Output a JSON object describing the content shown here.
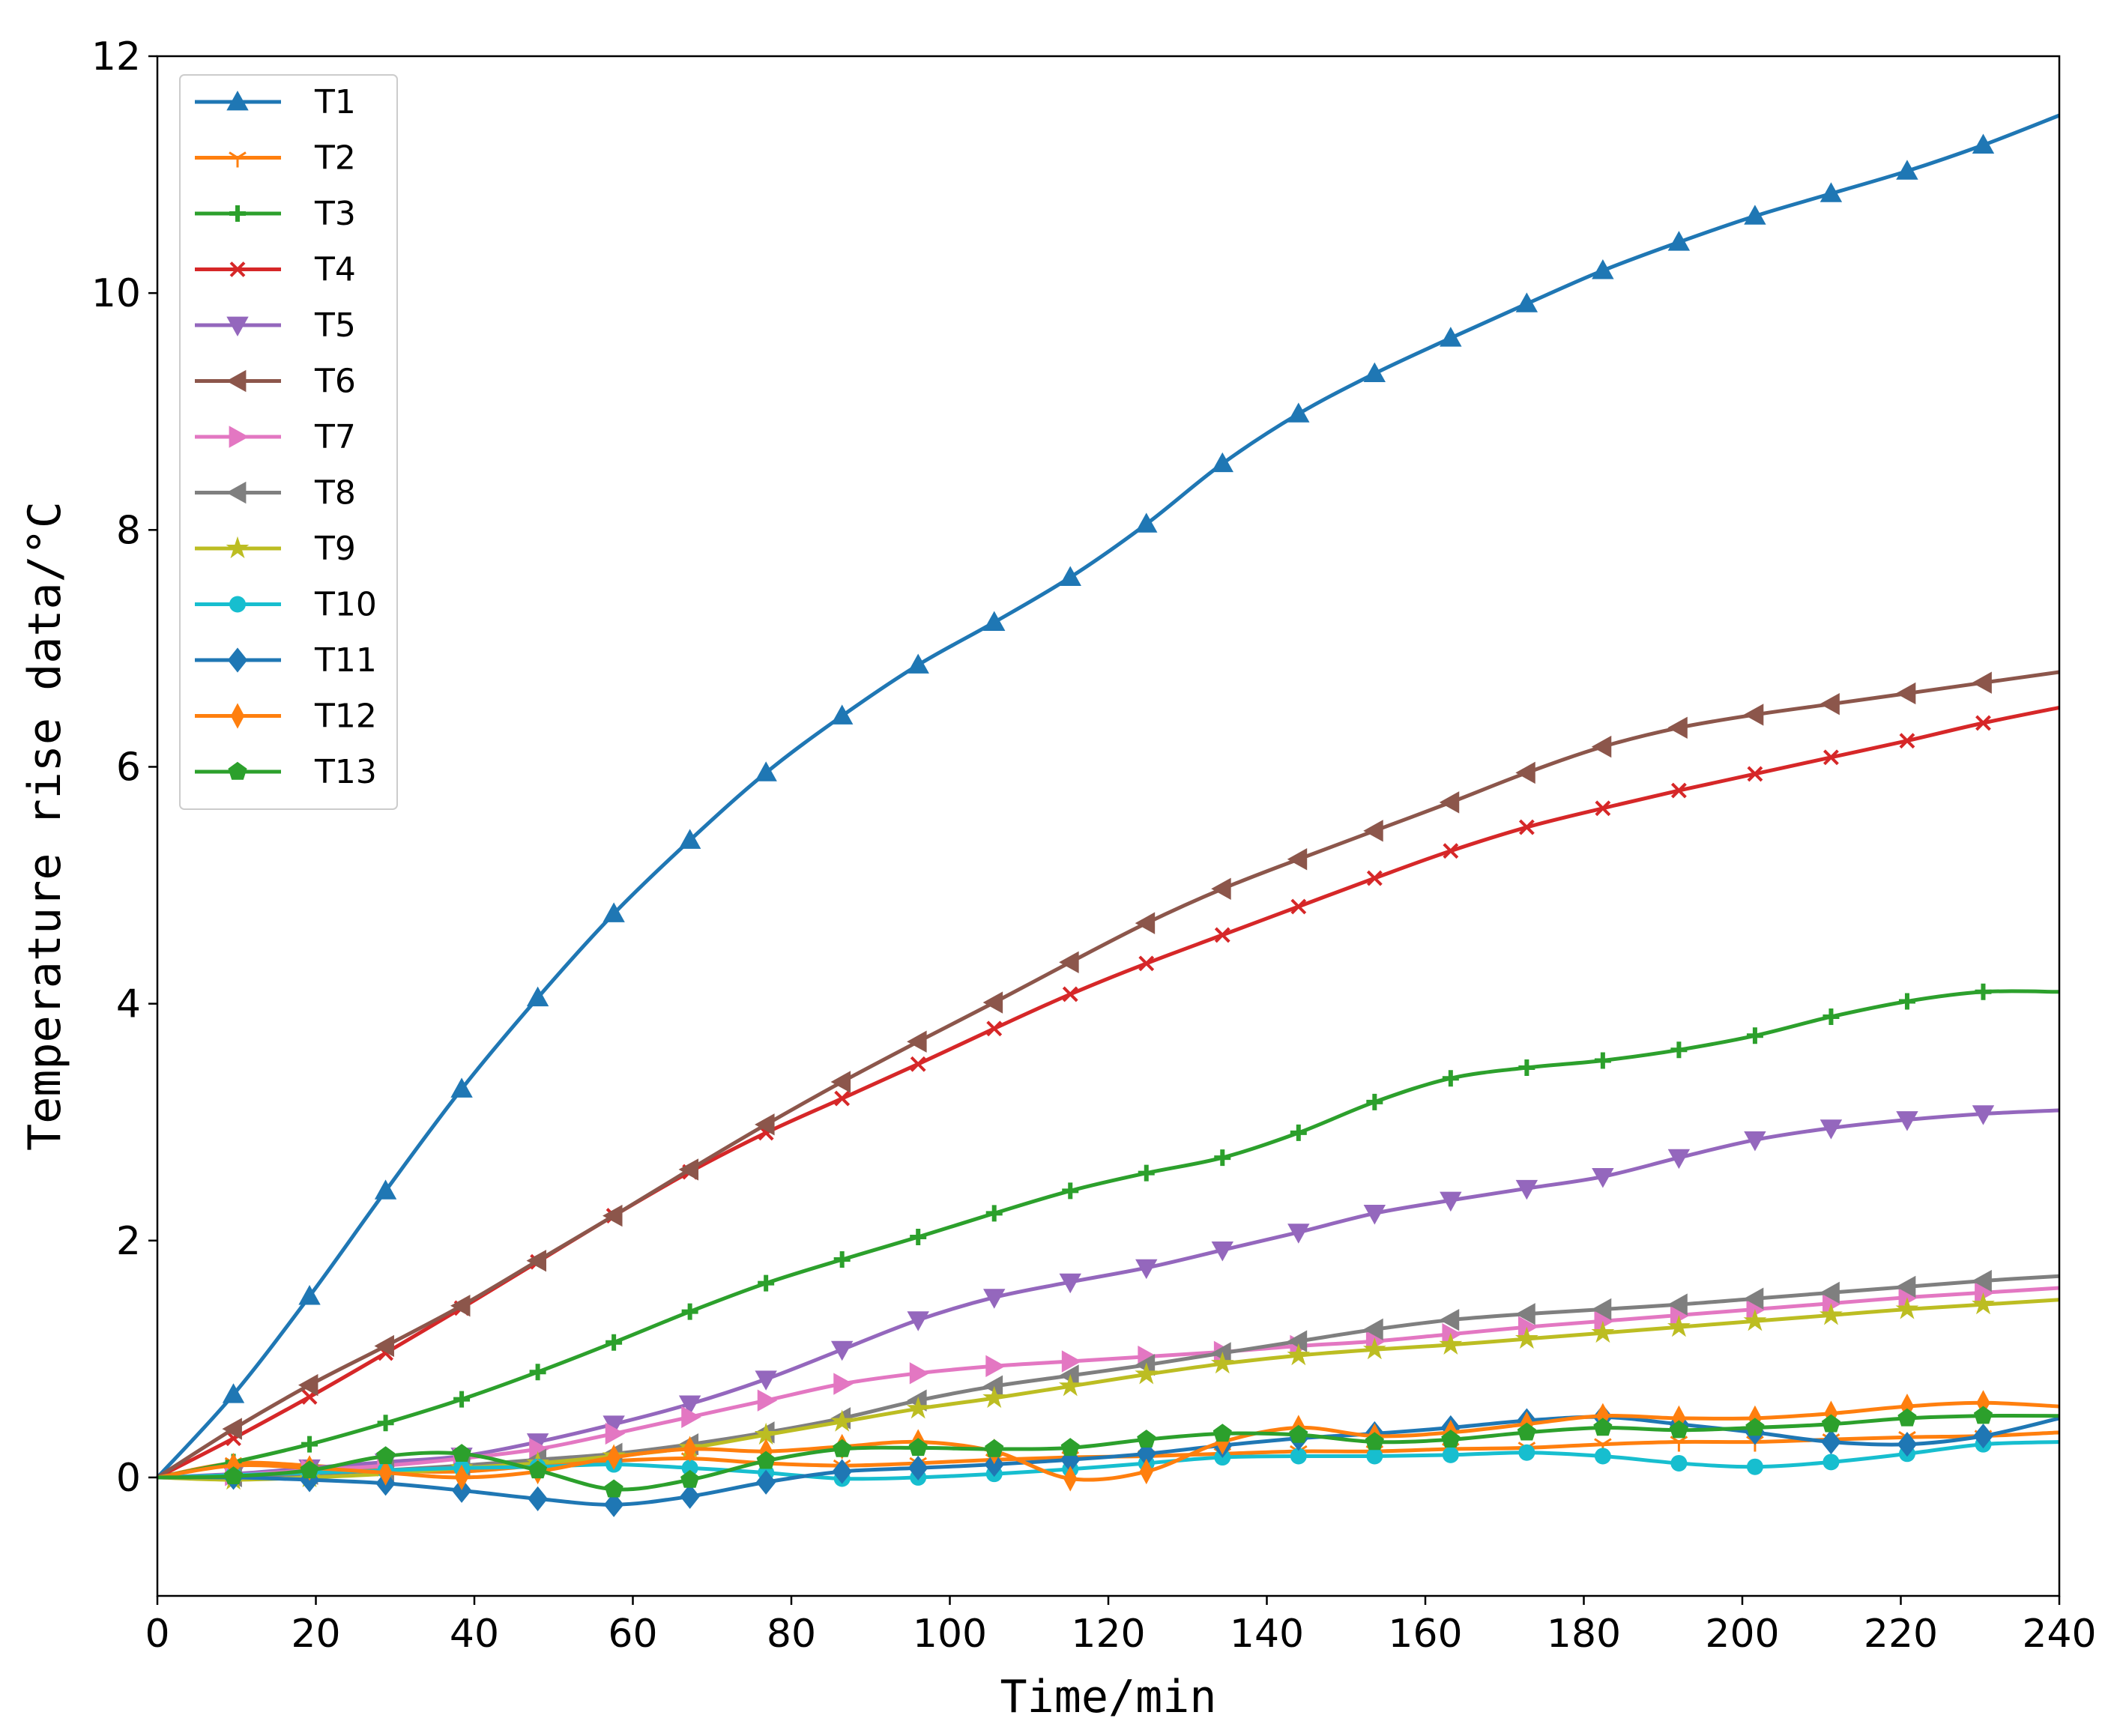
{
  "chart_data": {
    "type": "line",
    "title": "",
    "xlabel": "Time/min",
    "ylabel": "Temperature rise data/°C",
    "xlim": [
      0,
      240
    ],
    "ylim": [
      -1,
      12
    ],
    "xticks": [
      0,
      20,
      40,
      60,
      80,
      100,
      120,
      140,
      160,
      180,
      200,
      220,
      240
    ],
    "yticks": [
      0,
      2,
      4,
      6,
      8,
      10,
      12
    ],
    "grid": false,
    "legend_position": "top-left",
    "x": [
      0,
      9.6,
      19.2,
      28.8,
      38.4,
      48,
      57.6,
      67.2,
      76.8,
      86.4,
      96,
      105.6,
      115.2,
      124.8,
      134.4,
      144,
      153.6,
      163.2,
      172.8,
      182.4,
      192,
      201.6,
      211.2,
      220.8,
      230.4,
      240
    ],
    "series": [
      {
        "name": "T1",
        "color": "#1f77b4",
        "marker": "triangle-up",
        "values": [
          0,
          0.7,
          1.53,
          2.42,
          3.28,
          4.05,
          4.76,
          5.38,
          5.95,
          6.43,
          6.86,
          7.22,
          7.6,
          8.05,
          8.56,
          8.98,
          9.32,
          9.62,
          9.91,
          10.19,
          10.43,
          10.65,
          10.84,
          11.03,
          11.25,
          11.5
        ]
      },
      {
        "name": "T2",
        "color": "#ff7f0e",
        "marker": "tri-down",
        "values": [
          0,
          0.12,
          0.1,
          0.06,
          0.05,
          0.1,
          0.14,
          0.16,
          0.12,
          0.1,
          0.12,
          0.15,
          0.17,
          0.18,
          0.2,
          0.22,
          0.22,
          0.24,
          0.25,
          0.28,
          0.3,
          0.3,
          0.32,
          0.34,
          0.35,
          0.38
        ]
      },
      {
        "name": "T3",
        "color": "#2ca02c",
        "marker": "plus",
        "values": [
          0,
          0.13,
          0.28,
          0.46,
          0.66,
          0.89,
          1.14,
          1.4,
          1.64,
          1.84,
          2.03,
          2.23,
          2.42,
          2.57,
          2.7,
          2.91,
          3.17,
          3.37,
          3.46,
          3.52,
          3.61,
          3.73,
          3.89,
          4.02,
          4.1,
          4.1
        ]
      },
      {
        "name": "T4",
        "color": "#d62728",
        "marker": "x",
        "values": [
          0,
          0.33,
          0.68,
          1.05,
          1.43,
          1.82,
          2.21,
          2.58,
          2.91,
          3.2,
          3.49,
          3.79,
          4.08,
          4.34,
          4.58,
          4.82,
          5.06,
          5.29,
          5.49,
          5.65,
          5.8,
          5.94,
          6.08,
          6.22,
          6.37,
          6.5
        ]
      },
      {
        "name": "T5",
        "color": "#9467bd",
        "marker": "triangle-down",
        "values": [
          0,
          0.03,
          0.08,
          0.13,
          0.18,
          0.3,
          0.45,
          0.62,
          0.83,
          1.08,
          1.33,
          1.52,
          1.65,
          1.77,
          1.92,
          2.07,
          2.23,
          2.34,
          2.44,
          2.54,
          2.7,
          2.85,
          2.95,
          3.02,
          3.07,
          3.1
        ]
      },
      {
        "name": "T6",
        "color": "#8c564b",
        "marker": "triangle-left",
        "values": [
          0,
          0.41,
          0.78,
          1.11,
          1.45,
          1.83,
          2.21,
          2.6,
          2.98,
          3.34,
          3.68,
          4.01,
          4.35,
          4.68,
          4.97,
          5.22,
          5.46,
          5.7,
          5.95,
          6.17,
          6.33,
          6.44,
          6.53,
          6.62,
          6.71,
          6.8
        ]
      },
      {
        "name": "T7",
        "color": "#e377c2",
        "marker": "triangle-right",
        "values": [
          0,
          0.02,
          0.06,
          0.1,
          0.16,
          0.24,
          0.37,
          0.51,
          0.65,
          0.79,
          0.88,
          0.94,
          0.98,
          1.02,
          1.06,
          1.11,
          1.15,
          1.21,
          1.27,
          1.32,
          1.37,
          1.42,
          1.47,
          1.52,
          1.56,
          1.6
        ]
      },
      {
        "name": "T8",
        "color": "#7f7f7f",
        "marker": "triangle-left",
        "values": [
          0,
          0.01,
          0.03,
          0.06,
          0.1,
          0.15,
          0.2,
          0.28,
          0.38,
          0.5,
          0.65,
          0.77,
          0.86,
          0.95,
          1.05,
          1.15,
          1.25,
          1.33,
          1.38,
          1.42,
          1.46,
          1.51,
          1.56,
          1.61,
          1.66,
          1.7
        ]
      },
      {
        "name": "T9",
        "color": "#bcbd22",
        "marker": "star",
        "values": [
          0,
          -0.02,
          0,
          0.03,
          0.08,
          0.12,
          0.18,
          0.25,
          0.36,
          0.47,
          0.58,
          0.67,
          0.77,
          0.87,
          0.96,
          1.03,
          1.08,
          1.12,
          1.17,
          1.22,
          1.27,
          1.32,
          1.37,
          1.42,
          1.46,
          1.5
        ]
      },
      {
        "name": "T10",
        "color": "#17becf",
        "marker": "circle",
        "values": [
          0,
          0.02,
          0.04,
          0.06,
          0.08,
          0.09,
          0.11,
          0.08,
          0.04,
          -0.01,
          0,
          0.03,
          0.07,
          0.12,
          0.17,
          0.18,
          0.18,
          0.19,
          0.21,
          0.18,
          0.12,
          0.09,
          0.13,
          0.2,
          0.28,
          0.3
        ]
      },
      {
        "name": "T11",
        "color": "#1f77b4",
        "marker": "diamond",
        "values": [
          0,
          0,
          -0.02,
          -0.05,
          -0.11,
          -0.18,
          -0.23,
          -0.16,
          -0.04,
          0.05,
          0.08,
          0.11,
          0.15,
          0.2,
          0.27,
          0.33,
          0.37,
          0.42,
          0.48,
          0.51,
          0.45,
          0.38,
          0.3,
          0.28,
          0.35,
          0.5
        ]
      },
      {
        "name": "T12",
        "color": "#ff7f0e",
        "marker": "thin-diamond",
        "values": [
          0,
          0.1,
          0.08,
          0.04,
          0,
          0.05,
          0.17,
          0.24,
          0.22,
          0.26,
          0.3,
          0.22,
          -0.01,
          0.05,
          0.3,
          0.42,
          0.35,
          0.38,
          0.45,
          0.52,
          0.5,
          0.5,
          0.54,
          0.6,
          0.63,
          0.6
        ]
      },
      {
        "name": "T13",
        "color": "#2ca02c",
        "marker": "pentagon",
        "values": [
          0,
          0.01,
          0.06,
          0.18,
          0.2,
          0.06,
          -0.1,
          -0.02,
          0.14,
          0.24,
          0.25,
          0.24,
          0.25,
          0.32,
          0.37,
          0.36,
          0.3,
          0.32,
          0.38,
          0.42,
          0.4,
          0.42,
          0.45,
          0.5,
          0.52,
          0.52
        ]
      }
    ]
  }
}
